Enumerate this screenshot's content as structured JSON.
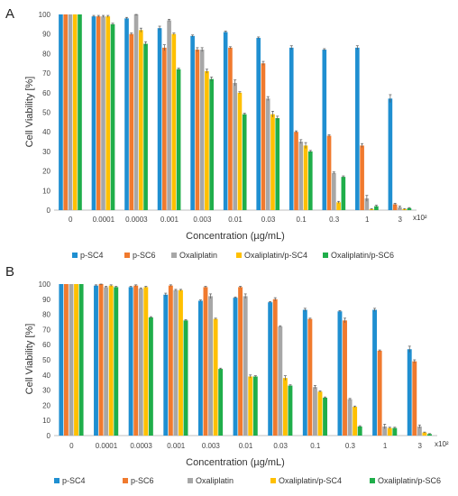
{
  "chart_data": [
    {
      "type": "bar",
      "panel_label": "A",
      "title": "",
      "xlabel": "Concentration (µg/mL)",
      "ylabel": "Cell Viability [%]",
      "x_multiplier": "x10²",
      "ylim": [
        0,
        100
      ],
      "yticks": [
        0,
        10,
        20,
        30,
        40,
        50,
        60,
        70,
        80,
        90,
        100
      ],
      "grid": false,
      "legend_position": "bottom",
      "categories": [
        "0",
        "0.0001",
        "0.0003",
        "0.001",
        "0.003",
        "0.01",
        "0.03",
        "0.1",
        "0.3",
        "1",
        "3"
      ],
      "series": [
        {
          "name": "p-SC4",
          "color": "#1f8fd1",
          "values": [
            100,
            99,
            98,
            93,
            89,
            91,
            88,
            83,
            82,
            83,
            57
          ],
          "errors": [
            0,
            0.5,
            0.5,
            1,
            0.5,
            0.5,
            0.5,
            1,
            0.5,
            1,
            2
          ]
        },
        {
          "name": "p-SC6",
          "color": "#f07a2e",
          "values": [
            100,
            99,
            90,
            83,
            82,
            83,
            75,
            40,
            38,
            33,
            3
          ],
          "errors": [
            0,
            0.5,
            0.5,
            1.5,
            1,
            0.5,
            1,
            0.5,
            0.5,
            1,
            0.5
          ]
        },
        {
          "name": "Oxaliplatin",
          "color": "#a7a7a7",
          "values": [
            100,
            99,
            100,
            97,
            82,
            65,
            57,
            35,
            19,
            6,
            1.5
          ],
          "errors": [
            0,
            0.5,
            0.5,
            0.5,
            1,
            1.5,
            1,
            1,
            0.5,
            1.5,
            0.5
          ]
        },
        {
          "name": "Oxaliplatin/p-SC4",
          "color": "#ffc000",
          "values": [
            100,
            99,
            92,
            90,
            71,
            60,
            49,
            33,
            4,
            0.5,
            0.5
          ],
          "errors": [
            0,
            0.5,
            1,
            0.5,
            1,
            0.5,
            1.5,
            1.5,
            0.5,
            0.3,
            0.3
          ]
        },
        {
          "name": "Oxaliplatin/p-SC6",
          "color": "#1fae4a",
          "values": [
            100,
            95,
            85,
            72,
            67,
            49,
            47,
            30,
            17,
            2,
            1
          ],
          "errors": [
            0,
            0.5,
            1,
            0.5,
            1,
            0.5,
            1,
            0.5,
            0.5,
            0.5,
            0.3
          ]
        }
      ]
    },
    {
      "type": "bar",
      "panel_label": "B",
      "title": "",
      "xlabel": "Concentration (µg/mL)",
      "ylabel": "Cell Viability [%]",
      "x_multiplier": "x10²",
      "ylim": [
        0,
        100
      ],
      "yticks": [
        0,
        10,
        20,
        30,
        40,
        50,
        60,
        70,
        80,
        90,
        100
      ],
      "grid": false,
      "legend_position": "bottom",
      "categories": [
        "0",
        "0.0001",
        "0.0003",
        "0.001",
        "0.003",
        "0.01",
        "0.03",
        "0.1",
        "0.3",
        "1",
        "3"
      ],
      "series": [
        {
          "name": "p-SC4",
          "color": "#1f8fd1",
          "values": [
            100,
            99,
            98,
            93,
            89,
            91,
            88,
            83,
            82,
            83,
            57
          ],
          "errors": [
            0,
            0.5,
            0.5,
            1,
            0.5,
            0.5,
            0.5,
            1,
            0.5,
            1,
            2
          ]
        },
        {
          "name": "p-SC6",
          "color": "#f07a2e",
          "values": [
            100,
            100,
            99,
            99,
            98,
            98,
            90,
            77,
            76,
            56,
            49
          ],
          "errors": [
            0,
            0.5,
            0.5,
            0.5,
            0.5,
            0.5,
            1,
            0.5,
            1.5,
            0.5,
            1
          ]
        },
        {
          "name": "Oxaliplatin",
          "color": "#a7a7a7",
          "values": [
            100,
            98,
            97,
            96,
            92,
            92,
            72,
            32,
            24,
            6,
            6
          ],
          "errors": [
            0,
            0.5,
            0.5,
            0.5,
            1.5,
            1.5,
            0.5,
            1,
            0.5,
            1.5,
            1
          ]
        },
        {
          "name": "Oxaliplatin/p-SC4",
          "color": "#ffc000",
          "values": [
            100,
            99,
            98,
            96,
            77,
            39,
            38,
            29,
            19,
            5,
            2
          ],
          "errors": [
            0,
            0.5,
            0.5,
            0.5,
            0.5,
            1,
            1.5,
            0.5,
            0.5,
            0.5,
            0.3
          ]
        },
        {
          "name": "Oxaliplatin/p-SC6",
          "color": "#1fae4a",
          "values": [
            100,
            98,
            78,
            76,
            44,
            39,
            33,
            25,
            6,
            5,
            1
          ],
          "errors": [
            0,
            0.5,
            0.5,
            0.5,
            0.5,
            0.5,
            0.5,
            0.5,
            0.5,
            0.5,
            0.3
          ]
        }
      ]
    }
  ]
}
